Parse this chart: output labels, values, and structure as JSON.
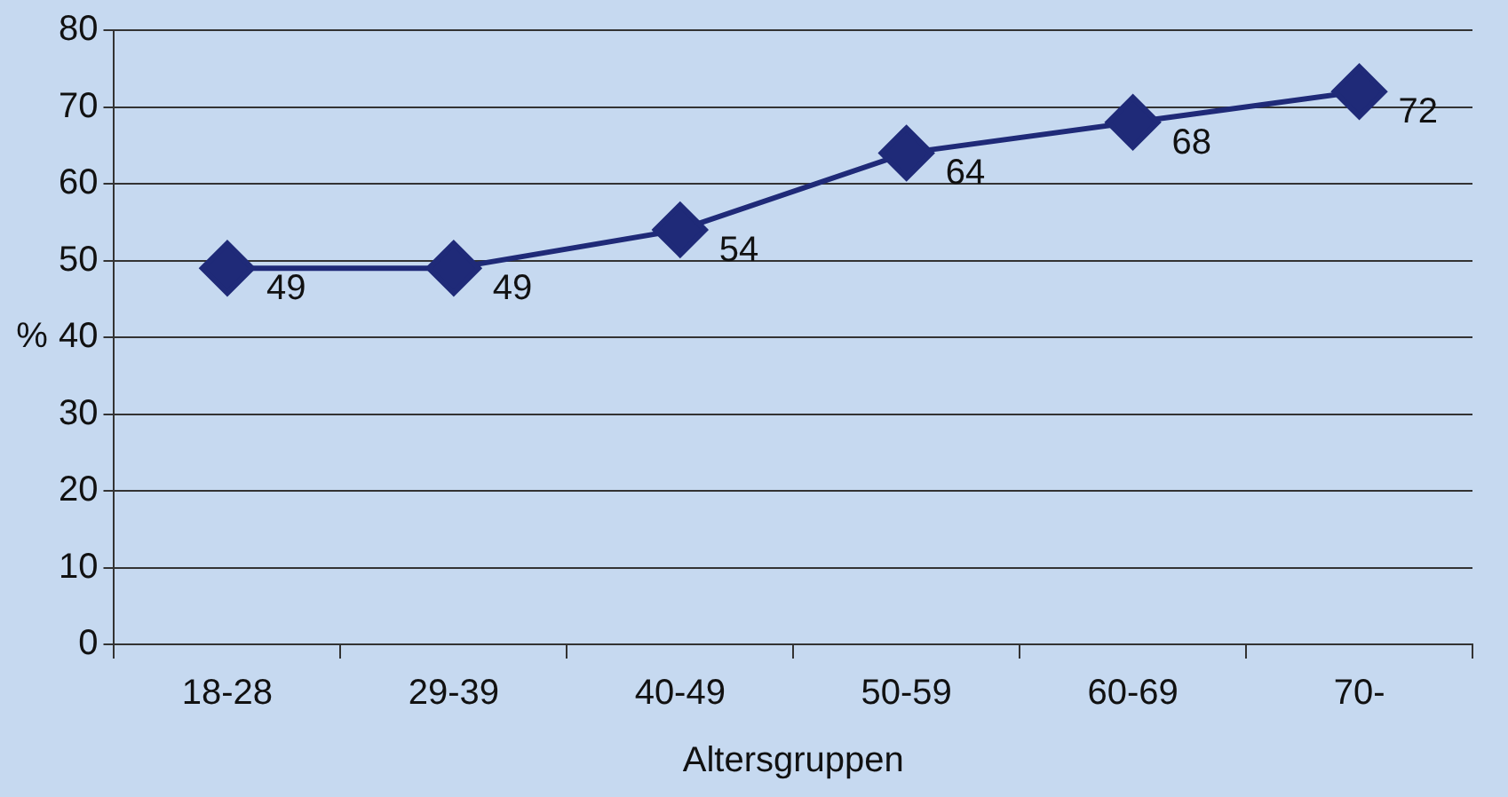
{
  "chart_data": {
    "type": "line",
    "xlabel": "Altersgruppen",
    "ylabel": "%",
    "categories": [
      "18-28",
      "29-39",
      "40-49",
      "50-59",
      "60-69",
      "70-"
    ],
    "series": [
      {
        "color": "#1f2a78",
        "values": [
          49,
          49,
          54,
          64,
          68,
          72
        ]
      }
    ],
    "ylim": [
      0,
      80
    ],
    "yticks": [
      0,
      10,
      20,
      30,
      40,
      50,
      60,
      70,
      80
    ],
    "grid": "y",
    "marker": "diamond",
    "line_style": "solid",
    "data_labels": true,
    "legend": false
  }
}
